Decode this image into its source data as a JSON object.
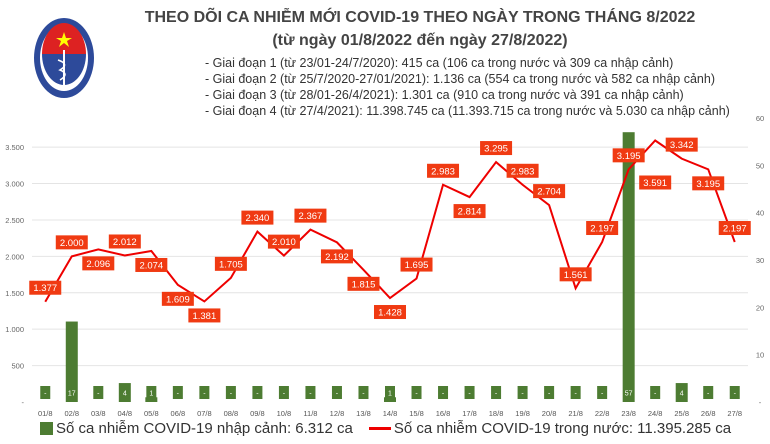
{
  "header": {
    "title": "THEO DÕI CA NHIỄM MỚI COVID-19 THEO NGÀY TRONG THÁNG 8/2022",
    "subtitle": "(từ ngày 01/8/2022 đến ngày 27/8/2022)",
    "notes": [
      "- Giai đoạn 1 (từ 23/01-24/7/2020): 415 ca (106 ca trong nước và 309 ca nhập cảnh)",
      "- Giai đoạn 2 (từ 25/7/2020-27/01/2021): 1.136 ca (554 ca trong nước và 582 ca nhập cảnh)",
      "- Giai đoạn 3 (từ 28/01-26/4/2021): 1.301 ca (910 ca trong nước và 391 ca nhập cảnh)",
      "- Giai đoạn 4 (từ 27/4/2021): 11.398.745 ca (11.393.715 ca trong nước và 5.030 ca nhập cảnh)"
    ],
    "logo_text": "BỘ Y TẾ MINISTRY OF HEALTH"
  },
  "chart_data": {
    "type": "bar+line",
    "categories": [
      "01/8",
      "02/8",
      "03/8",
      "04/8",
      "05/8",
      "06/8",
      "07/8",
      "08/8",
      "09/8",
      "10/8",
      "11/8",
      "12/8",
      "13/8",
      "14/8",
      "15/8",
      "16/8",
      "17/8",
      "18/8",
      "19/8",
      "20/8",
      "21/8",
      "22/8",
      "23/8",
      "24/8",
      "25/8",
      "26/8",
      "27/8"
    ],
    "series": [
      {
        "name": "Số ca nhiễm COVID-19 nhập cảnh: 6.312 ca",
        "type": "bar",
        "axis": "right",
        "color": "#4d7c32",
        "values": [
          0,
          17,
          0,
          4,
          1,
          0,
          0,
          0,
          0,
          0,
          0,
          0,
          0,
          1,
          0,
          0,
          0,
          0,
          0,
          0,
          0,
          0,
          57,
          0,
          4,
          0,
          0
        ],
        "labels": [
          "-",
          "17",
          "-",
          "4",
          "1",
          "-",
          "-",
          "-",
          "-",
          "-",
          "-",
          "-",
          "-",
          "1",
          "-",
          "-",
          "-",
          "-",
          "-",
          "-",
          "-",
          "-",
          "57",
          "-",
          "4",
          "-",
          "-"
        ]
      },
      {
        "name": "Số ca nhiễm COVID-19 trong nước: 11.395.285 ca",
        "type": "line",
        "axis": "left",
        "color": "#ee0000",
        "values": [
          1377,
          2000,
          2096,
          2012,
          2074,
          1609,
          1381,
          1705,
          2340,
          2010,
          2367,
          2192,
          1815,
          1428,
          1695,
          2983,
          2814,
          3295,
          2983,
          2704,
          1561,
          2197,
          3195,
          3591,
          3342,
          3195,
          2197
        ],
        "labels": [
          "1.377",
          "2.000",
          "2.096",
          "2.012",
          "2.074",
          "1.609",
          "1.381",
          "1.705",
          "2.340",
          "2.010",
          "2.367",
          "2.192",
          "1.815",
          "1.428",
          "1.695",
          "2.983",
          "2.814",
          "3.295",
          "2.983",
          "2.704",
          "1.561",
          "2.197",
          "3.195",
          "3.591",
          "3.342",
          "3.195",
          "2.197"
        ]
      }
    ],
    "left_axis": {
      "ylim": [
        0,
        3900
      ],
      "ticks": [
        0,
        500,
        1000,
        1500,
        2000,
        2500,
        3000,
        3500
      ],
      "tick_labels": [
        "-",
        "500",
        "1.000",
        "1.500",
        "2.000",
        "2.500",
        "3.000",
        "3.500"
      ]
    },
    "right_axis": {
      "ylim": [
        0,
        60
      ],
      "ticks": [
        0,
        10,
        20,
        30,
        40,
        50,
        60
      ],
      "tick_labels": [
        "-",
        "10",
        "20",
        "30",
        "40",
        "50",
        "60"
      ]
    },
    "label_color": "#f03a12",
    "grid": true,
    "legend": "bottom"
  }
}
